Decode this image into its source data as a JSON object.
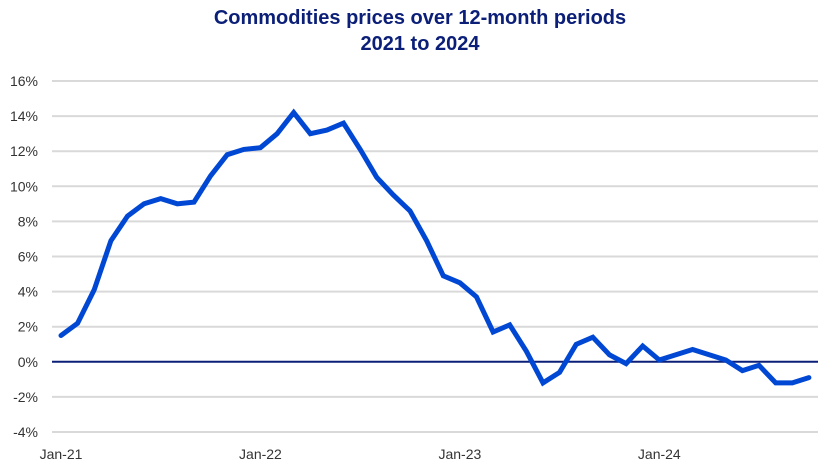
{
  "chart_data": {
    "type": "line",
    "title": "Commodities prices over 12-month periods",
    "subtitle": "2021 to 2024",
    "xlabel": "",
    "ylabel": "",
    "ylim": [
      -4,
      16
    ],
    "yticks": [
      -4,
      -2,
      0,
      2,
      4,
      6,
      8,
      10,
      12,
      14,
      16
    ],
    "ytick_labels": [
      "-4%",
      "-2%",
      "0%",
      "2%",
      "4%",
      "6%",
      "8%",
      "10%",
      "12%",
      "14%",
      "16%"
    ],
    "xtick_labels": [
      "Jan-21",
      "Jan-22",
      "Jan-23",
      "Jan-24"
    ],
    "grid": true,
    "colors": {
      "line": "#0047d4",
      "zero_line": "#0b1f78",
      "grid": "#d9d9d9",
      "title": "#0b1f78"
    },
    "x": [
      "Jan-21",
      "Feb-21",
      "Mar-21",
      "Apr-21",
      "May-21",
      "Jun-21",
      "Jul-21",
      "Aug-21",
      "Sep-21",
      "Oct-21",
      "Nov-21",
      "Dec-21",
      "Jan-22",
      "Feb-22",
      "Mar-22",
      "Apr-22",
      "May-22",
      "Jun-22",
      "Jul-22",
      "Aug-22",
      "Sep-22",
      "Oct-22",
      "Nov-22",
      "Dec-22",
      "Jan-23",
      "Feb-23",
      "Mar-23",
      "Apr-23",
      "May-23",
      "Jun-23",
      "Jul-23",
      "Aug-23",
      "Sep-23",
      "Oct-23",
      "Nov-23",
      "Dec-23",
      "Jan-24",
      "Feb-24",
      "Mar-24",
      "Apr-24",
      "May-24",
      "Jun-24",
      "Jul-24",
      "Aug-24",
      "Sep-24",
      "Oct-24"
    ],
    "series": [
      {
        "values": [
          1.5,
          2.2,
          4.1,
          6.9,
          8.3,
          9.0,
          9.3,
          9.0,
          9.1,
          10.6,
          11.8,
          12.1,
          12.2,
          13.0,
          14.2,
          13.0,
          13.2,
          13.6,
          12.1,
          10.5,
          9.5,
          8.6,
          6.9,
          4.9,
          4.5,
          3.7,
          1.7,
          2.1,
          0.6,
          -1.2,
          -0.6,
          1.0,
          1.4,
          0.4,
          -0.1,
          0.9,
          0.1,
          0.4,
          0.7,
          0.4,
          0.1,
          -0.5,
          -0.2,
          -1.2,
          -1.2,
          -0.9
        ]
      }
    ]
  }
}
